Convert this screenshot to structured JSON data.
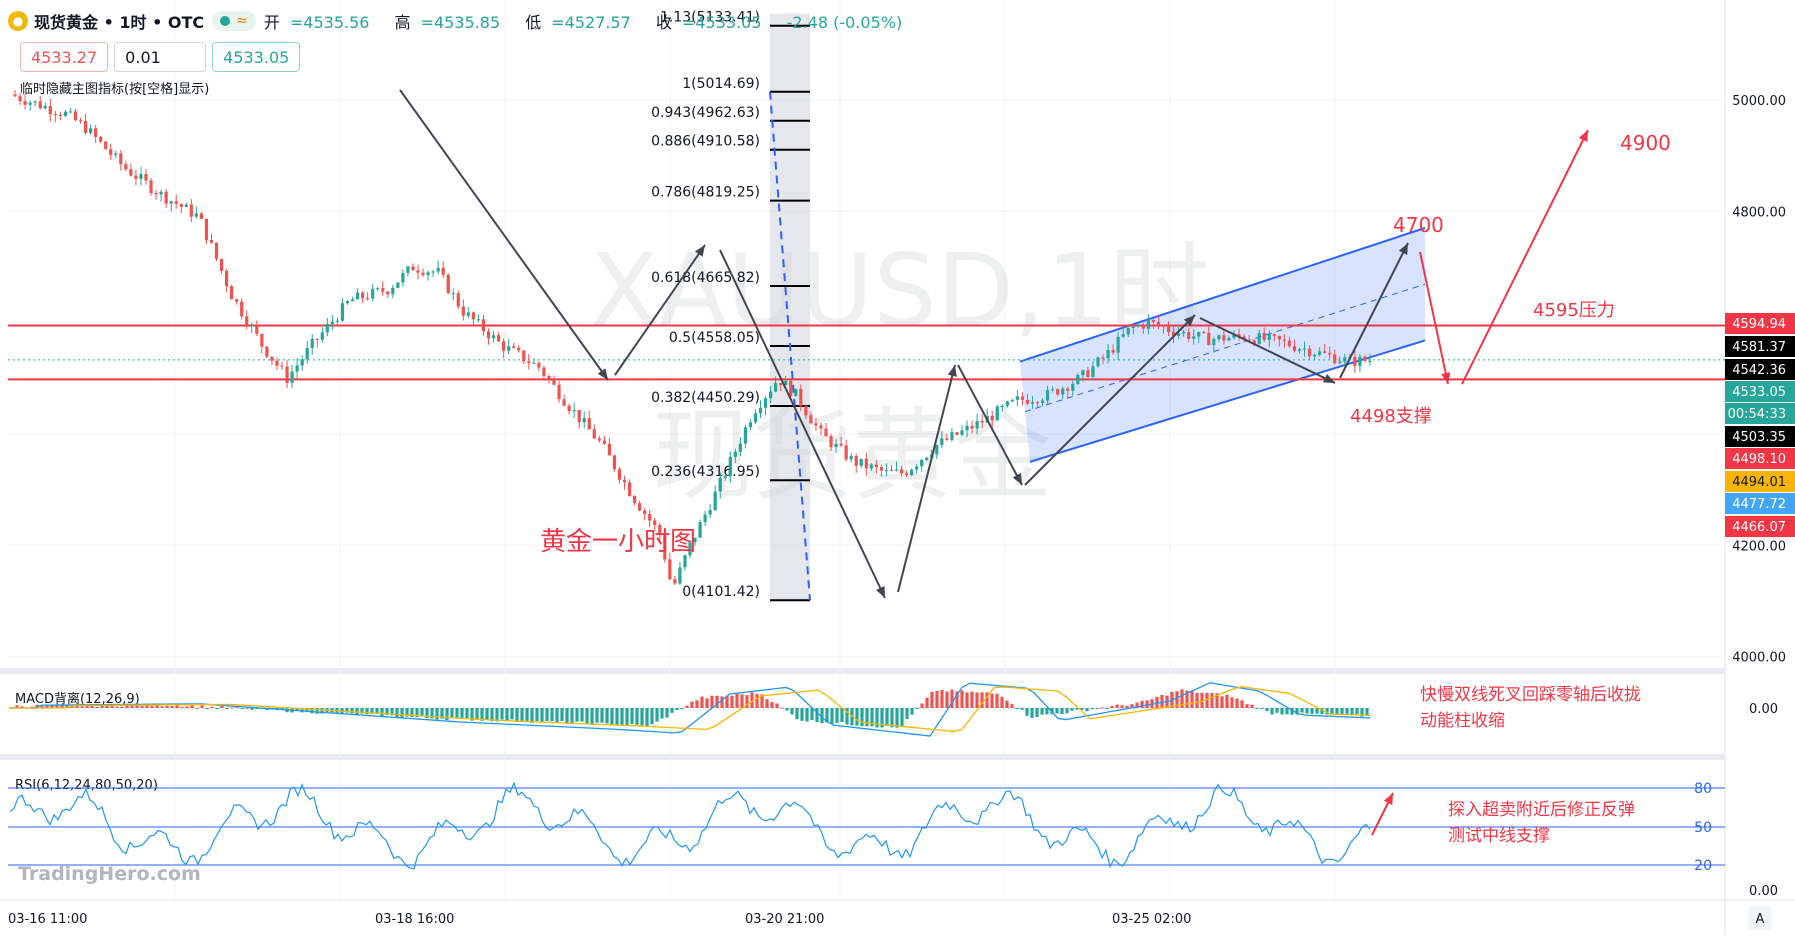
{
  "header": {
    "symbol": "现货黄金 • 1时 • OTC",
    "open_label": "开",
    "open": "=4535.56",
    "high_label": "高",
    "high": "=4535.85",
    "low_label": "低",
    "low": "=4527.57",
    "close_label": "收",
    "close": "=4533.05",
    "change": "-2.48 (-0.05%)"
  },
  "trade": {
    "sell": "4533.27",
    "qty": "0.01",
    "buy": "4533.05"
  },
  "indicator_hint": "临时隐藏主图指标(按[空格]显示)",
  "watermark": {
    "line1": "XAUUSD,1时",
    "line2": "现货黄金"
  },
  "branding": "TradingHero.com",
  "colors": {
    "up": "#26a69a",
    "down": "#ef5350",
    "annotation": "#f23645",
    "channel": "#2962ff"
  },
  "chart_data": [
    {
      "type": "candlestick",
      "title": "黄金一小时图",
      "x_ticks": [
        "03-16 11:00",
        "03-18 16:00",
        "03-20 21:00",
        "03-25 02:00"
      ],
      "y_ticks": [
        5000,
        4800,
        4600,
        4400,
        4200,
        4000
      ],
      "y_tick_labels": [
        "5000.00",
        "4800.00",
        "4200.00",
        "4000.00"
      ],
      "ylim": [
        3990,
        5150
      ],
      "price_badges": [
        {
          "value": "4594.94",
          "color": "#f23645"
        },
        {
          "value": "4581.37",
          "color": "#000000"
        },
        {
          "value": "4542.36",
          "color": "#000000"
        },
        {
          "value": "4533.05",
          "color": "#26a69a"
        },
        {
          "value": "00:54:33",
          "color": "#26a69a"
        },
        {
          "value": "4503.35",
          "color": "#000000"
        },
        {
          "value": "4498.10",
          "color": "#f23645"
        },
        {
          "value": "4494.01",
          "color": "#f7b500"
        },
        {
          "value": "4477.72",
          "color": "#42a5f5"
        },
        {
          "value": "4466.07",
          "color": "#f23645"
        }
      ],
      "fibonacci": [
        {
          "label": "1.13(5133.41)",
          "price": 5133.41
        },
        {
          "label": "1(5014.69)",
          "price": 5014.69
        },
        {
          "label": "0.943(4962.63)",
          "price": 4962.63
        },
        {
          "label": "0.886(4910.58)",
          "price": 4910.58
        },
        {
          "label": "0.786(4819.25)",
          "price": 4819.25
        },
        {
          "label": "0.618(4665.82)",
          "price": 4665.82
        },
        {
          "label": "0.5(4558.05)",
          "price": 4558.05
        },
        {
          "label": "0.382(4450.29)",
          "price": 4450.29
        },
        {
          "label": "0.236(4316.95)",
          "price": 4316.95
        },
        {
          "label": "0(4101.42)",
          "price": 4101.42
        }
      ],
      "horizontal_lines": [
        4594.94,
        4498.1
      ],
      "annotations": {
        "resistance": "4595压力",
        "support": "4498支撑",
        "target1": "4700",
        "target2": "4900"
      },
      "path_points": [
        [
          0.0,
          5010
        ],
        [
          22,
          4975
        ],
        [
          30,
          4950
        ],
        [
          45,
          4880
        ],
        [
          60,
          4830
        ],
        [
          75,
          4790
        ],
        [
          88,
          4650
        ],
        [
          100,
          4560
        ],
        [
          110,
          4500
        ],
        [
          120,
          4560
        ],
        [
          135,
          4640
        ],
        [
          150,
          4660
        ],
        [
          160,
          4700
        ],
        [
          170,
          4690
        ],
        [
          180,
          4620
        ],
        [
          195,
          4560
        ],
        [
          210,
          4520
        ],
        [
          222,
          4450
        ],
        [
          235,
          4380
        ],
        [
          247,
          4290
        ],
        [
          258,
          4220
        ],
        [
          263,
          4120
        ],
        [
          270,
          4200
        ],
        [
          283,
          4320
        ],
        [
          295,
          4440
        ],
        [
          305,
          4500
        ],
        [
          312,
          4470
        ],
        [
          322,
          4400
        ],
        [
          335,
          4350
        ],
        [
          348,
          4330
        ],
        [
          355,
          4330
        ],
        [
          368,
          4380
        ],
        [
          385,
          4420
        ],
        [
          400,
          4460
        ],
        [
          412,
          4470
        ],
        [
          425,
          4500
        ],
        [
          435,
          4540
        ],
        [
          445,
          4590
        ],
        [
          452,
          4600
        ],
        [
          462,
          4585
        ],
        [
          475,
          4570
        ],
        [
          490,
          4575
        ],
        [
          505,
          4565
        ],
        [
          520,
          4545
        ],
        [
          532,
          4530
        ],
        [
          540,
          4533
        ]
      ],
      "path_x_range": [
        0,
        540
      ]
    },
    {
      "type": "bar",
      "title": "MACD背离(12,26,9)",
      "y_tick_labels": [
        "0.00"
      ],
      "note": "快慢双线死叉回踩零轴后收拢",
      "note2": "动能柱收缩"
    },
    {
      "type": "line",
      "title": "RSI(6,12,24,80,50,20)",
      "levels": [
        80,
        50,
        20
      ],
      "y_tick_labels": [
        "80",
        "50",
        "20",
        "0.00"
      ],
      "note": "探入超卖附近后修正反弹",
      "note2": "测试中线支撑"
    }
  ]
}
